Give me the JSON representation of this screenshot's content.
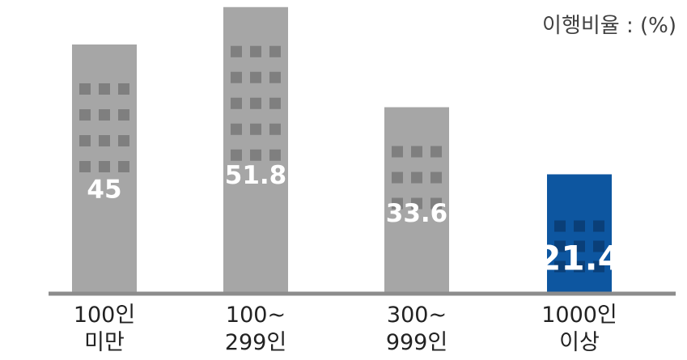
{
  "chart_data": {
    "type": "bar",
    "unit_label": "이행비율 : (%)",
    "categories": [
      [
        "100인",
        "미만"
      ],
      [
        "100~",
        "299인"
      ],
      [
        "300~",
        "999인"
      ],
      [
        "1000인",
        "이상"
      ]
    ],
    "values": [
      45,
      51.8,
      33.6,
      21.4
    ],
    "value_labels": [
      "45",
      "51.8",
      "33.6",
      "21.4"
    ],
    "highlight_index": 3,
    "colors": {
      "bar": "#a6a6a6",
      "bar_window": "#7f7f7f",
      "highlight_bar": "#0d56a0",
      "highlight_window": "#0a3f78",
      "baseline": "#8c8c8c",
      "value_text": "#ffffff"
    },
    "title": "",
    "xlabel": "",
    "ylabel": "",
    "grid": false,
    "legend": "none"
  }
}
